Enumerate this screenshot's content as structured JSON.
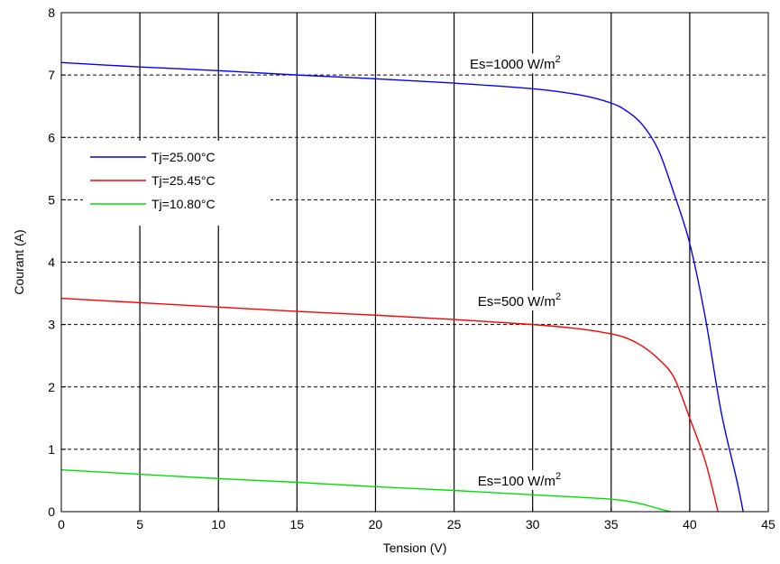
{
  "chart_data": {
    "type": "line",
    "title": "",
    "xlabel": "Tension (V)",
    "ylabel": "Courant  (A)",
    "xlim": [
      0,
      45
    ],
    "ylim": [
      0,
      8
    ],
    "xticks": [
      0,
      5,
      10,
      15,
      20,
      25,
      30,
      35,
      40,
      45
    ],
    "yticks": [
      0,
      1,
      2,
      3,
      4,
      5,
      6,
      7,
      8
    ],
    "grid": {
      "vertical": "solid",
      "horizontal": "dashed"
    },
    "legend_position": "middle-left",
    "series": [
      {
        "name": "Tj=25.00°C",
        "color": "#0000ff",
        "x": [
          0,
          5,
          10,
          15,
          20,
          25,
          30,
          33,
          35,
          36,
          37,
          38,
          39,
          40,
          41,
          42,
          43,
          43.4
        ],
        "y": [
          7.2,
          7.13,
          7.07,
          7.0,
          6.94,
          6.87,
          6.78,
          6.68,
          6.55,
          6.42,
          6.2,
          5.8,
          5.1,
          4.3,
          3.1,
          1.6,
          0.5,
          0
        ]
      },
      {
        "name": "Tj=25.45°C",
        "color": "#ff0000",
        "x": [
          0,
          5,
          10,
          15,
          20,
          25,
          30,
          33,
          35,
          36,
          37,
          38,
          39,
          40,
          41,
          41.8
        ],
        "y": [
          3.42,
          3.35,
          3.28,
          3.21,
          3.15,
          3.08,
          3.0,
          2.93,
          2.85,
          2.78,
          2.65,
          2.45,
          2.15,
          1.5,
          0.8,
          0
        ]
      },
      {
        "name": "Tj=10.80°C",
        "color": "#00e000",
        "x": [
          0,
          5,
          10,
          15,
          20,
          25,
          30,
          33,
          35,
          36,
          37,
          38,
          38.8
        ],
        "y": [
          0.67,
          0.6,
          0.53,
          0.47,
          0.4,
          0.34,
          0.27,
          0.23,
          0.2,
          0.17,
          0.12,
          0.05,
          0
        ]
      }
    ],
    "annotations": [
      {
        "text": "Es=1000  W/m",
        "sup": "2",
        "x": 26,
        "y": 7.1
      },
      {
        "text": "Es=500  W/m",
        "sup": "2",
        "x": 26.5,
        "y": 3.3
      },
      {
        "text": "Es=100  W/m",
        "sup": "2",
        "x": 26.5,
        "y": 0.42
      }
    ]
  }
}
